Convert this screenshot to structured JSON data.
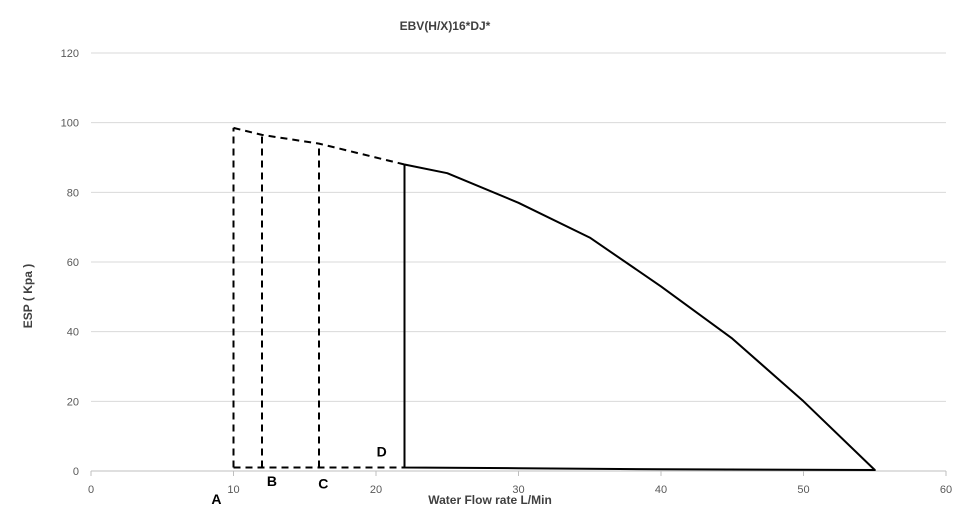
{
  "chart_data": {
    "type": "line",
    "title": "EBV(H/X)16*DJ*",
    "xlabel": "Water Flow rate  L/Min",
    "ylabel": "ESP ( Kpa )",
    "xlim": [
      0,
      60
    ],
    "ylim": [
      0,
      120
    ],
    "xticks": [
      0,
      10,
      20,
      30,
      40,
      50,
      60
    ],
    "yticks": [
      0,
      20,
      40,
      60,
      80,
      100,
      120
    ],
    "grid": "horizontal",
    "legend": "none",
    "colors": {
      "line": "#000000",
      "grid": "#d9d9d9",
      "axis": "#bfbfbf"
    },
    "series": [
      {
        "style": "solid",
        "points": [
          [
            22,
            88
          ],
          [
            25,
            85.5
          ],
          [
            30,
            77
          ],
          [
            35,
            67
          ],
          [
            40,
            53
          ],
          [
            45,
            38
          ],
          [
            50,
            20
          ],
          [
            55,
            0.3
          ],
          [
            40,
            0.5
          ],
          [
            30,
            0.8
          ],
          [
            22,
            1
          ],
          [
            22,
            88
          ]
        ]
      },
      {
        "style": "dashed",
        "points": [
          [
            10,
            98.5
          ],
          [
            12,
            96.5
          ],
          [
            16,
            94
          ],
          [
            22,
            88
          ]
        ]
      },
      {
        "style": "dashed",
        "points": [
          [
            10,
            1
          ],
          [
            22,
            1
          ]
        ]
      },
      {
        "style": "dashed",
        "points": [
          [
            10,
            1
          ],
          [
            10,
            98.5
          ]
        ]
      },
      {
        "style": "dashed",
        "points": [
          [
            12,
            1
          ],
          [
            12,
            96.5
          ]
        ]
      },
      {
        "style": "dashed",
        "points": [
          [
            16,
            1
          ],
          [
            16,
            94
          ]
        ]
      }
    ],
    "annotations": [
      {
        "text": "A",
        "x": 8.8,
        "y": -9.5
      },
      {
        "text": "B",
        "x": 12.7,
        "y": -4.3
      },
      {
        "text": "C",
        "x": 16.3,
        "y": -5
      },
      {
        "text": "D",
        "x": 20.4,
        "y": 4.2
      }
    ]
  }
}
